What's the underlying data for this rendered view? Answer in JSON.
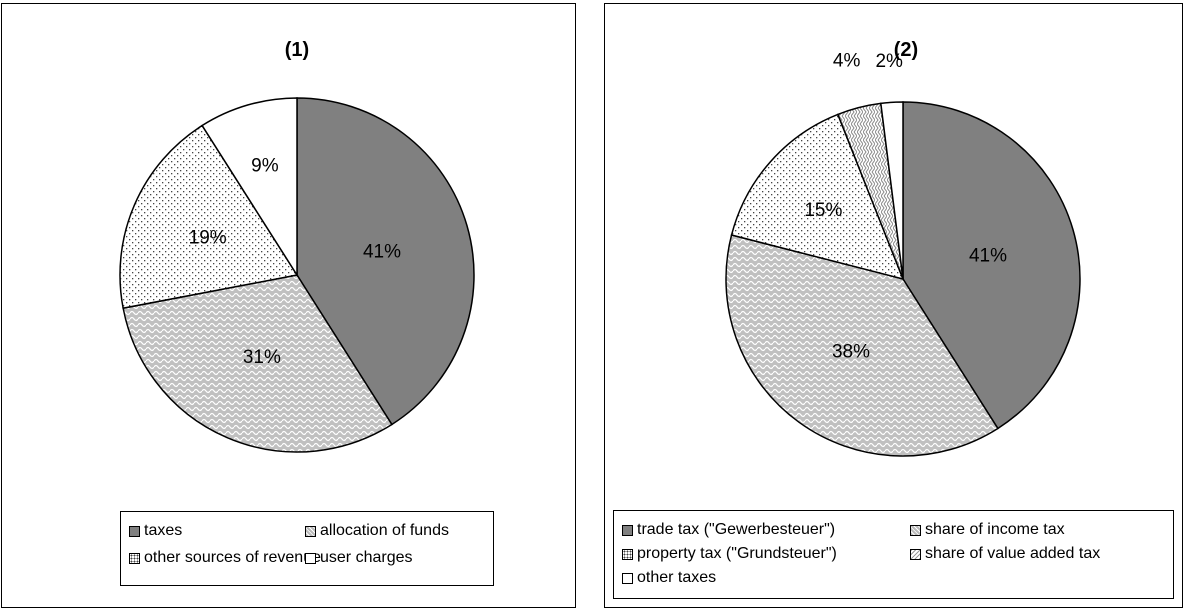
{
  "chart_data": [
    {
      "type": "pie",
      "title": "(1)",
      "slices": [
        {
          "label": "taxes",
          "value": 41,
          "display": "41%",
          "fill": "dark"
        },
        {
          "label": "allocation of funds",
          "value": 31,
          "display": "31%",
          "fill": "wave"
        },
        {
          "label": "other sources of revenue",
          "value": 19,
          "display": "19%",
          "fill": "dots"
        },
        {
          "label": "user charges",
          "value": 9,
          "display": "9%",
          "fill": "white"
        }
      ],
      "legend_position": "bottom"
    },
    {
      "type": "pie",
      "title": "(2)",
      "slices": [
        {
          "label": "trade tax (\"Gewerbesteuer\")",
          "value": 41,
          "display": "41%",
          "fill": "dark"
        },
        {
          "label": "share of income tax",
          "value": 38,
          "display": "38%",
          "fill": "wave"
        },
        {
          "label": "property tax (\"Grundsteuer\")",
          "value": 15,
          "display": "15%",
          "fill": "dots"
        },
        {
          "label": "share of value added tax",
          "value": 4,
          "display": "4%",
          "fill": "zigzag"
        },
        {
          "label": "other taxes",
          "value": 2,
          "display": "2%",
          "fill": "white"
        }
      ],
      "legend_position": "bottom"
    }
  ],
  "colors": {
    "dark": "#808080",
    "wave_bg": "#c0c0c0",
    "border": "#000000",
    "background": "#ffffff"
  }
}
